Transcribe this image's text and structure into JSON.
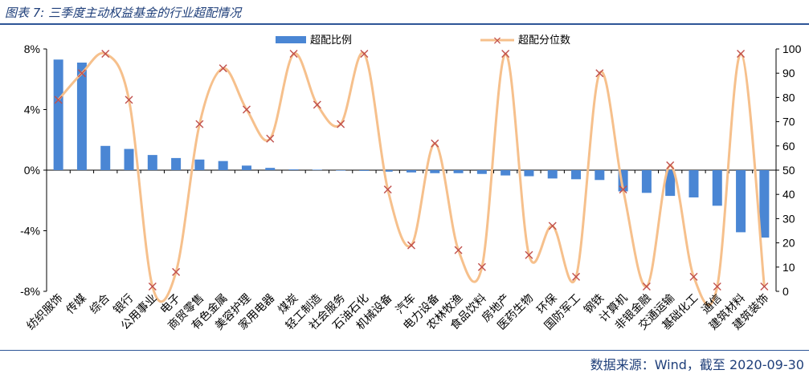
{
  "title": "图表 7: 三季度主动权益基金的行业超配情况",
  "source": "数据来源：Wind，截至 2020-09-30",
  "colors": {
    "bar": "#4a86d4",
    "line": "#f6c08c",
    "marker": "#c0504d",
    "header": "#1f3f7a"
  },
  "chart_data": {
    "type": "bar",
    "categories": [
      "纺织服饰",
      "传媒",
      "综合",
      "银行",
      "公用事业",
      "电子",
      "商贸零售",
      "有色金属",
      "美容护理",
      "家用电器",
      "煤炭",
      "轻工制造",
      "社会服务",
      "石油石化",
      "机械设备",
      "汽车",
      "电力设备",
      "农林牧渔",
      "食品饮料",
      "房地产",
      "医药生物",
      "环保",
      "国防军工",
      "钢铁",
      "计算机",
      "非银金融",
      "交通运输",
      "基础化工",
      "通信",
      "建筑材料",
      "建筑装饰"
    ],
    "series": [
      {
        "name": "超配比例",
        "type": "bar",
        "axis": "left",
        "values": [
          7.3,
          7.1,
          1.6,
          1.4,
          1.0,
          0.8,
          0.7,
          0.6,
          0.3,
          0.15,
          0.05,
          0.03,
          0.0,
          -0.05,
          -0.1,
          -0.15,
          -0.2,
          -0.2,
          -0.25,
          -0.35,
          -0.4,
          -0.55,
          -0.6,
          -0.65,
          -1.4,
          -1.5,
          -1.7,
          -1.8,
          -2.35,
          -4.1,
          -4.45
        ]
      },
      {
        "name": "超配分位数",
        "type": "line",
        "axis": "right",
        "values": [
          79,
          90,
          98,
          79,
          2,
          8,
          69,
          92,
          75,
          63,
          98,
          77,
          69,
          98,
          42,
          19,
          61,
          17,
          10,
          98,
          15,
          27,
          6,
          90,
          42,
          2,
          52,
          6,
          2,
          98,
          2
        ]
      }
    ],
    "y_left": {
      "ticks": [
        "8%",
        "4%",
        "0%",
        "-4%",
        "-8%"
      ],
      "range": [
        -8,
        8
      ]
    },
    "y_right": {
      "ticks": [
        "100",
        "90",
        "80",
        "70",
        "60",
        "50",
        "40",
        "30",
        "20",
        "10",
        "0"
      ],
      "range": [
        0,
        100
      ]
    },
    "legend_position": "top-center",
    "grid": false
  }
}
